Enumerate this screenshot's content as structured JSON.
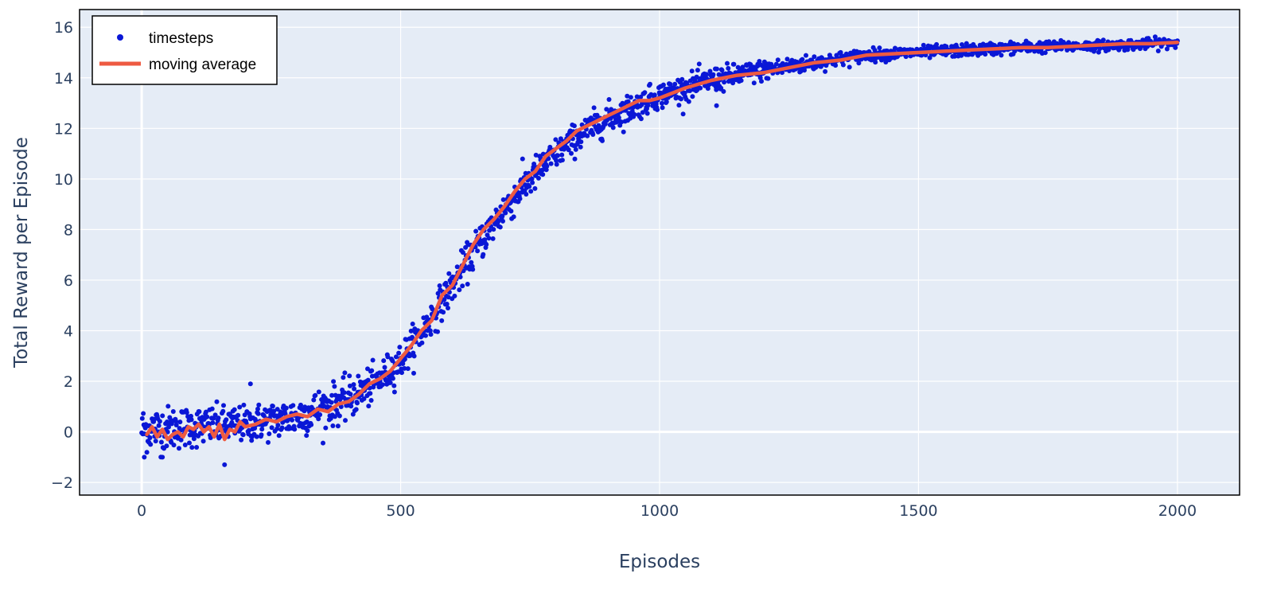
{
  "colors": {
    "plot_bg": "#e5ecf6",
    "grid": "#ffffff",
    "axis_text": "#2a3f5f",
    "frame": "#000000",
    "scatter": "#0a17d6",
    "moving_average": "#ee5a41"
  },
  "chart_data": {
    "type": "scatter",
    "title": "",
    "xlabel": "Episodes",
    "ylabel": "Total Reward per Episode",
    "xlim": [
      -120,
      2120
    ],
    "ylim": [
      -2.5,
      16.7
    ],
    "xticks": [
      0,
      500,
      1000,
      1500,
      2000
    ],
    "xtick_labels": [
      "0",
      "500",
      "1000",
      "1500",
      "2000"
    ],
    "yticks": [
      -2,
      0,
      2,
      4,
      6,
      8,
      10,
      12,
      14,
      16
    ],
    "ytick_labels": [
      "−2",
      "0",
      "2",
      "4",
      "6",
      "8",
      "10",
      "12",
      "14",
      "16"
    ],
    "grid": true,
    "legend": {
      "placement": "top-left",
      "framed": true
    },
    "series": [
      {
        "name": "timesteps",
        "mode": "markers",
        "x": [
          0,
          2000
        ],
        "count": 2000,
        "curve_x": [
          0,
          100,
          200,
          300,
          400,
          450,
          500,
          550,
          600,
          650,
          700,
          750,
          800,
          850,
          900,
          1000,
          1100,
          1200,
          1300,
          1400,
          1500,
          1600,
          1700,
          1800,
          1900,
          2000
        ],
        "curve_y": [
          0.1,
          0.2,
          0.3,
          0.6,
          1.3,
          1.9,
          2.8,
          4.2,
          5.8,
          7.4,
          8.8,
          10.0,
          11.0,
          11.8,
          12.4,
          13.3,
          13.9,
          14.3,
          14.6,
          14.9,
          15.0,
          15.1,
          15.2,
          15.25,
          15.3,
          15.4
        ],
        "noise_sd": [
          0.45,
          0.4,
          0.35,
          0.4,
          0.4,
          0.35,
          0.35,
          0.35,
          0.35,
          0.35,
          0.35,
          0.35,
          0.3,
          0.3,
          0.3,
          0.25,
          0.25,
          0.2,
          0.15,
          0.12,
          0.12,
          0.12,
          0.12,
          0.1,
          0.1,
          0.1
        ],
        "outliers": [
          [
            5,
            -1.0
          ],
          [
            40,
            -1.0
          ],
          [
            160,
            -1.3
          ],
          [
            210,
            1.9
          ],
          [
            980,
            13.7
          ],
          [
            1110,
            12.9
          ]
        ]
      },
      {
        "name": "moving average",
        "mode": "line",
        "x": [
          10,
          20,
          30,
          40,
          50,
          60,
          70,
          80,
          90,
          100,
          110,
          120,
          130,
          140,
          150,
          160,
          170,
          180,
          190,
          200,
          220,
          240,
          260,
          280,
          300,
          320,
          340,
          360,
          380,
          400,
          420,
          440,
          460,
          480,
          500,
          520,
          540,
          560,
          580,
          600,
          620,
          640,
          660,
          680,
          700,
          720,
          740,
          760,
          780,
          800,
          820,
          840,
          860,
          880,
          900,
          920,
          940,
          960,
          980,
          1000,
          1050,
          1100,
          1150,
          1200,
          1250,
          1300,
          1350,
          1400,
          1450,
          1500,
          1550,
          1600,
          1650,
          1700,
          1750,
          1800,
          1850,
          1900,
          1950,
          2000
        ],
        "y": [
          -0.1,
          0.2,
          -0.2,
          0.1,
          -0.3,
          -0.1,
          0.0,
          -0.2,
          0.2,
          0.1,
          0.3,
          0.0,
          0.2,
          -0.2,
          0.3,
          -0.3,
          0.1,
          0.0,
          0.4,
          0.2,
          0.3,
          0.5,
          0.4,
          0.6,
          0.7,
          0.6,
          0.9,
          0.8,
          1.1,
          1.2,
          1.5,
          1.9,
          2.1,
          2.4,
          2.9,
          3.4,
          4.0,
          4.4,
          5.4,
          5.8,
          6.6,
          7.4,
          8.0,
          8.4,
          8.9,
          9.5,
          10.0,
          10.3,
          10.9,
          11.2,
          11.5,
          11.9,
          12.1,
          12.3,
          12.5,
          12.7,
          12.9,
          13.1,
          13.1,
          13.2,
          13.6,
          13.9,
          14.1,
          14.2,
          14.4,
          14.6,
          14.7,
          14.9,
          14.95,
          15.0,
          15.05,
          15.1,
          15.15,
          15.2,
          15.2,
          15.25,
          15.3,
          15.35,
          15.35,
          15.4
        ]
      }
    ]
  }
}
